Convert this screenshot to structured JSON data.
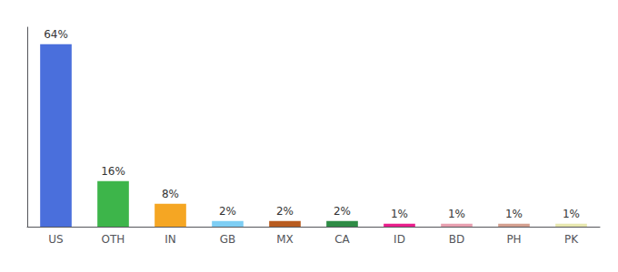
{
  "chart_data": {
    "type": "bar",
    "categories": [
      "US",
      "OTH",
      "IN",
      "GB",
      "MX",
      "CA",
      "ID",
      "BD",
      "PH",
      "PK"
    ],
    "values": [
      64,
      16,
      8,
      2,
      2,
      2,
      1,
      1,
      1,
      1
    ],
    "value_labels": [
      "64%",
      "16%",
      "8%",
      "2%",
      "2%",
      "2%",
      "1%",
      "1%",
      "1%",
      "1%"
    ],
    "colors": [
      "#4a6fdc",
      "#3db54a",
      "#f5a623",
      "#7ecef4",
      "#b85c20",
      "#2e8b45",
      "#e91e8c",
      "#e8a0b0",
      "#d4a090",
      "#e8e8b0"
    ],
    "ylim": [
      0,
      70
    ],
    "grid": false,
    "tick_labels": "x",
    "data_labels": true
  }
}
